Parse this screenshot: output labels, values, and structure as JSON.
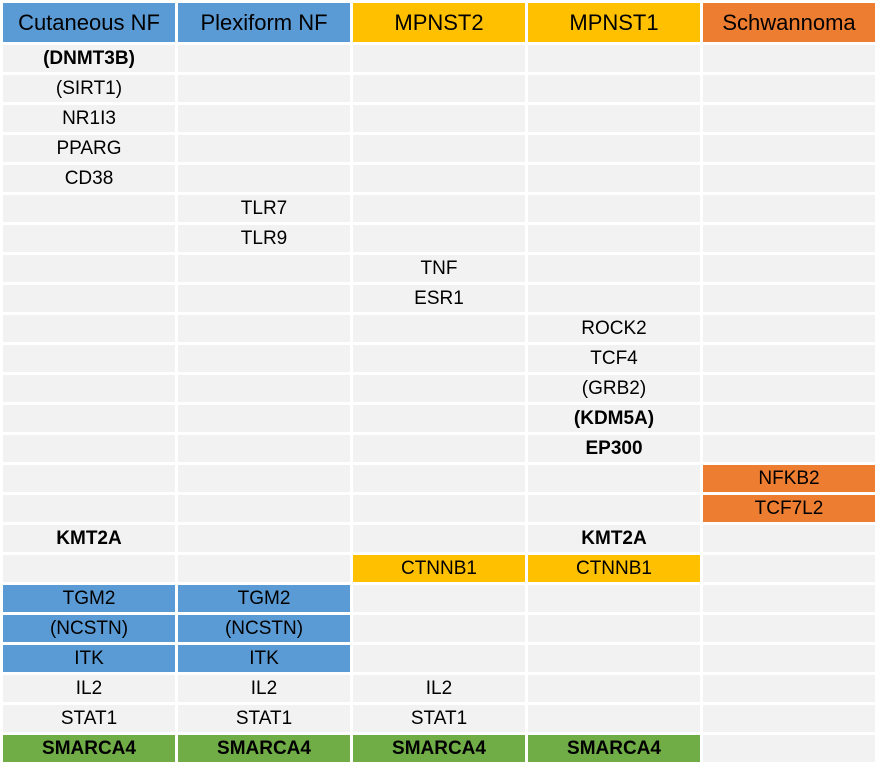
{
  "colors": {
    "cell_default": "#f2f2f2",
    "blue": "#5b9bd5",
    "gold": "#ffc000",
    "orange": "#ed7d31",
    "green": "#70ad47"
  },
  "headers": [
    {
      "label": "Cutaneous NF",
      "color": "blue"
    },
    {
      "label": "Plexiform NF",
      "color": "blue"
    },
    {
      "label": "MPNST2",
      "color": "gold"
    },
    {
      "label": "MPNST1",
      "color": "gold"
    },
    {
      "label": "Schwannoma",
      "color": "orange"
    }
  ],
  "rows": [
    [
      {
        "text": "(DNMT3B)",
        "bold": true
      },
      null,
      null,
      null,
      null
    ],
    [
      {
        "text": "(SIRT1)"
      },
      null,
      null,
      null,
      null
    ],
    [
      {
        "text": "NR1I3"
      },
      null,
      null,
      null,
      null
    ],
    [
      {
        "text": "PPARG"
      },
      null,
      null,
      null,
      null
    ],
    [
      {
        "text": "CD38"
      },
      null,
      null,
      null,
      null
    ],
    [
      null,
      {
        "text": "TLR7"
      },
      null,
      null,
      null
    ],
    [
      null,
      {
        "text": "TLR9"
      },
      null,
      null,
      null
    ],
    [
      null,
      null,
      {
        "text": "TNF"
      },
      null,
      null
    ],
    [
      null,
      null,
      {
        "text": "ESR1"
      },
      null,
      null
    ],
    [
      null,
      null,
      null,
      {
        "text": "ROCK2"
      },
      null
    ],
    [
      null,
      null,
      null,
      {
        "text": "TCF4"
      },
      null
    ],
    [
      null,
      null,
      null,
      {
        "text": "(GRB2)"
      },
      null
    ],
    [
      null,
      null,
      null,
      {
        "text": "(KDM5A)",
        "bold": true
      },
      null
    ],
    [
      null,
      null,
      null,
      {
        "text": "EP300",
        "bold": true
      },
      null
    ],
    [
      null,
      null,
      null,
      null,
      {
        "text": "NFKB2",
        "color": "orange"
      }
    ],
    [
      null,
      null,
      null,
      null,
      {
        "text": "TCF7L2",
        "color": "orange"
      }
    ],
    [
      {
        "text": "KMT2A",
        "bold": true
      },
      null,
      null,
      {
        "text": "KMT2A",
        "bold": true
      },
      null
    ],
    [
      null,
      null,
      {
        "text": "CTNNB1",
        "color": "gold"
      },
      {
        "text": "CTNNB1",
        "color": "gold"
      },
      null
    ],
    [
      {
        "text": "TGM2",
        "color": "blue"
      },
      {
        "text": "TGM2",
        "color": "blue"
      },
      null,
      null,
      null
    ],
    [
      {
        "text": "(NCSTN)",
        "color": "blue"
      },
      {
        "text": "(NCSTN)",
        "color": "blue"
      },
      null,
      null,
      null
    ],
    [
      {
        "text": "ITK",
        "color": "blue"
      },
      {
        "text": "ITK",
        "color": "blue"
      },
      null,
      null,
      null
    ],
    [
      {
        "text": "IL2"
      },
      {
        "text": "IL2"
      },
      {
        "text": "IL2"
      },
      null,
      null
    ],
    [
      {
        "text": "STAT1"
      },
      {
        "text": "STAT1"
      },
      {
        "text": "STAT1"
      },
      null,
      null
    ],
    [
      {
        "text": "SMARCA4",
        "bold": true,
        "color": "green"
      },
      {
        "text": "SMARCA4",
        "bold": true,
        "color": "green"
      },
      {
        "text": "SMARCA4",
        "bold": true,
        "color": "green"
      },
      {
        "text": "SMARCA4",
        "bold": true,
        "color": "green"
      },
      null
    ]
  ]
}
